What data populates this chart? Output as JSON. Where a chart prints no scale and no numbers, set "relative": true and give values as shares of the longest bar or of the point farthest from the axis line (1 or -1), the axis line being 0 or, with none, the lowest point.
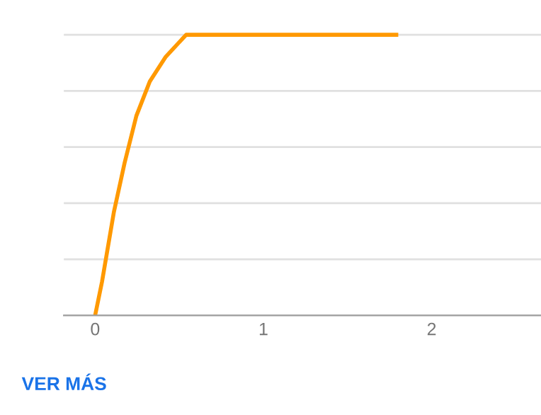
{
  "chart_data": {
    "type": "line",
    "relative": true,
    "x": [
      0,
      0.041,
      0.111,
      0.175,
      0.245,
      0.325,
      0.42,
      0.541,
      1.79
    ],
    "series": [
      {
        "color": "#ff9900",
        "values": [
          0,
          0.12,
          0.367,
          0.543,
          0.711,
          0.834,
          0.922,
          1,
          1
        ]
      }
    ],
    "xlim": [
      -0.186,
      2.65
    ],
    "xticks": [
      0,
      1,
      2
    ],
    "grid": "y",
    "tick_labels": "x",
    "marker": "none",
    "line_style": "solid",
    "annotations": [
      "VER MÁS"
    ]
  }
}
